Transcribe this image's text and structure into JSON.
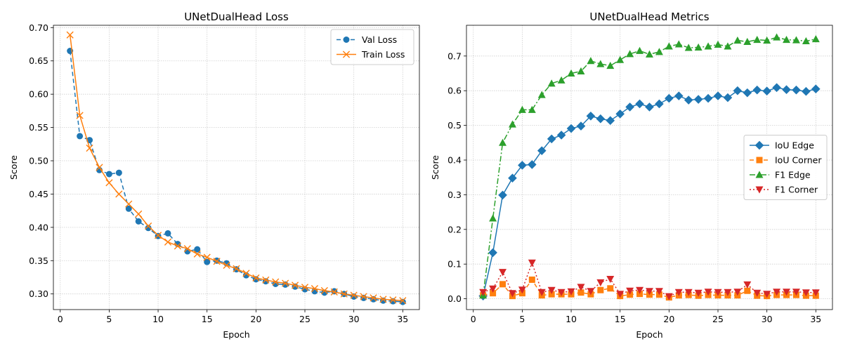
{
  "chart_data": [
    {
      "type": "line",
      "title": "UNetDualHead Loss",
      "xlabel": "Epoch",
      "ylabel": "Score",
      "xlim": [
        -0.7,
        36.7
      ],
      "ylim": [
        0.2765,
        0.7035
      ],
      "xticks": [
        0,
        5,
        10,
        15,
        20,
        25,
        30,
        35
      ],
      "yticks": [
        0.3,
        0.35,
        0.4,
        0.45,
        0.5,
        0.55,
        0.6,
        0.65,
        0.7
      ],
      "ytick_labels": [
        "0.30",
        "0.35",
        "0.40",
        "0.45",
        "0.50",
        "0.55",
        "0.60",
        "0.65",
        "0.70"
      ],
      "grid": true,
      "legend_placement": "upper right",
      "x": [
        1,
        2,
        3,
        4,
        5,
        6,
        7,
        8,
        9,
        10,
        11,
        12,
        13,
        14,
        15,
        16,
        17,
        18,
        19,
        20,
        21,
        22,
        23,
        24,
        25,
        26,
        27,
        28,
        29,
        30,
        31,
        32,
        33,
        34,
        35
      ],
      "series": [
        {
          "name": "Val Loss",
          "color": "#1f77b4",
          "marker": "circle",
          "dash": "6,4",
          "values": [
            0.665,
            0.537,
            0.531,
            0.486,
            0.48,
            0.482,
            0.428,
            0.409,
            0.399,
            0.387,
            0.391,
            0.375,
            0.364,
            0.367,
            0.348,
            0.35,
            0.346,
            0.337,
            0.328,
            0.322,
            0.319,
            0.315,
            0.314,
            0.311,
            0.307,
            0.304,
            0.302,
            0.304,
            0.3,
            0.296,
            0.294,
            0.292,
            0.29,
            0.289,
            0.288
          ]
        },
        {
          "name": "Train Loss",
          "color": "#ff7f0e",
          "marker": "x",
          "dash": "",
          "values": [
            0.689,
            0.568,
            0.519,
            0.49,
            0.467,
            0.45,
            0.435,
            0.42,
            0.402,
            0.388,
            0.378,
            0.372,
            0.368,
            0.36,
            0.355,
            0.349,
            0.343,
            0.338,
            0.331,
            0.324,
            0.321,
            0.318,
            0.316,
            0.313,
            0.31,
            0.308,
            0.305,
            0.303,
            0.3,
            0.298,
            0.296,
            0.294,
            0.292,
            0.291,
            0.29
          ]
        }
      ]
    },
    {
      "type": "line",
      "title": "UNetDualHead Metrics",
      "xlabel": "Epoch",
      "ylabel": "Score",
      "xlim": [
        -0.7,
        36.7
      ],
      "ylim": [
        -0.0312,
        0.7887
      ],
      "xticks": [
        0,
        5,
        10,
        15,
        20,
        25,
        30,
        35
      ],
      "yticks": [
        0.0,
        0.1,
        0.2,
        0.3,
        0.4,
        0.5,
        0.6,
        0.7
      ],
      "ytick_labels": [
        "0.0",
        "0.1",
        "0.2",
        "0.3",
        "0.4",
        "0.5",
        "0.6",
        "0.7"
      ],
      "grid": true,
      "legend_placement": "center right",
      "x": [
        1,
        2,
        3,
        4,
        5,
        6,
        7,
        8,
        9,
        10,
        11,
        12,
        13,
        14,
        15,
        16,
        17,
        18,
        19,
        20,
        21,
        22,
        23,
        24,
        25,
        26,
        27,
        28,
        29,
        30,
        31,
        32,
        33,
        34,
        35
      ],
      "series": [
        {
          "name": "IoU Edge",
          "color": "#1f77b4",
          "marker": "diamond",
          "dash": "",
          "values": [
            0.008,
            0.133,
            0.299,
            0.348,
            0.385,
            0.387,
            0.427,
            0.461,
            0.472,
            0.491,
            0.498,
            0.527,
            0.519,
            0.514,
            0.533,
            0.553,
            0.562,
            0.553,
            0.562,
            0.578,
            0.585,
            0.573,
            0.575,
            0.578,
            0.585,
            0.58,
            0.6,
            0.594,
            0.602,
            0.599,
            0.609,
            0.603,
            0.602,
            0.598,
            0.605
          ]
        },
        {
          "name": "IoU Corner",
          "color": "#ff7f0e",
          "marker": "square",
          "dash": "6,4",
          "values": [
            0.01,
            0.016,
            0.042,
            0.008,
            0.016,
            0.055,
            0.01,
            0.013,
            0.013,
            0.013,
            0.018,
            0.013,
            0.025,
            0.03,
            0.008,
            0.012,
            0.014,
            0.012,
            0.012,
            0.004,
            0.01,
            0.011,
            0.009,
            0.011,
            0.01,
            0.01,
            0.01,
            0.023,
            0.009,
            0.008,
            0.011,
            0.011,
            0.011,
            0.009,
            0.009
          ]
        },
        {
          "name": "F1 Edge",
          "color": "#2ca02c",
          "marker": "triangle-up",
          "dash": "8,3,2,3",
          "values": [
            0.01,
            0.232,
            0.45,
            0.503,
            0.545,
            0.545,
            0.588,
            0.621,
            0.63,
            0.65,
            0.656,
            0.686,
            0.677,
            0.672,
            0.689,
            0.706,
            0.715,
            0.705,
            0.712,
            0.728,
            0.734,
            0.724,
            0.725,
            0.728,
            0.733,
            0.728,
            0.745,
            0.741,
            0.747,
            0.745,
            0.754,
            0.747,
            0.746,
            0.743,
            0.749
          ]
        },
        {
          "name": "F1 Corner",
          "color": "#d62728",
          "marker": "triangle-down",
          "dash": "2,3",
          "values": [
            0.019,
            0.029,
            0.077,
            0.016,
            0.026,
            0.104,
            0.019,
            0.025,
            0.019,
            0.021,
            0.034,
            0.022,
            0.047,
            0.057,
            0.014,
            0.023,
            0.025,
            0.022,
            0.022,
            0.007,
            0.019,
            0.019,
            0.017,
            0.02,
            0.019,
            0.019,
            0.02,
            0.041,
            0.017,
            0.014,
            0.02,
            0.02,
            0.02,
            0.018,
            0.018
          ]
        }
      ]
    }
  ]
}
